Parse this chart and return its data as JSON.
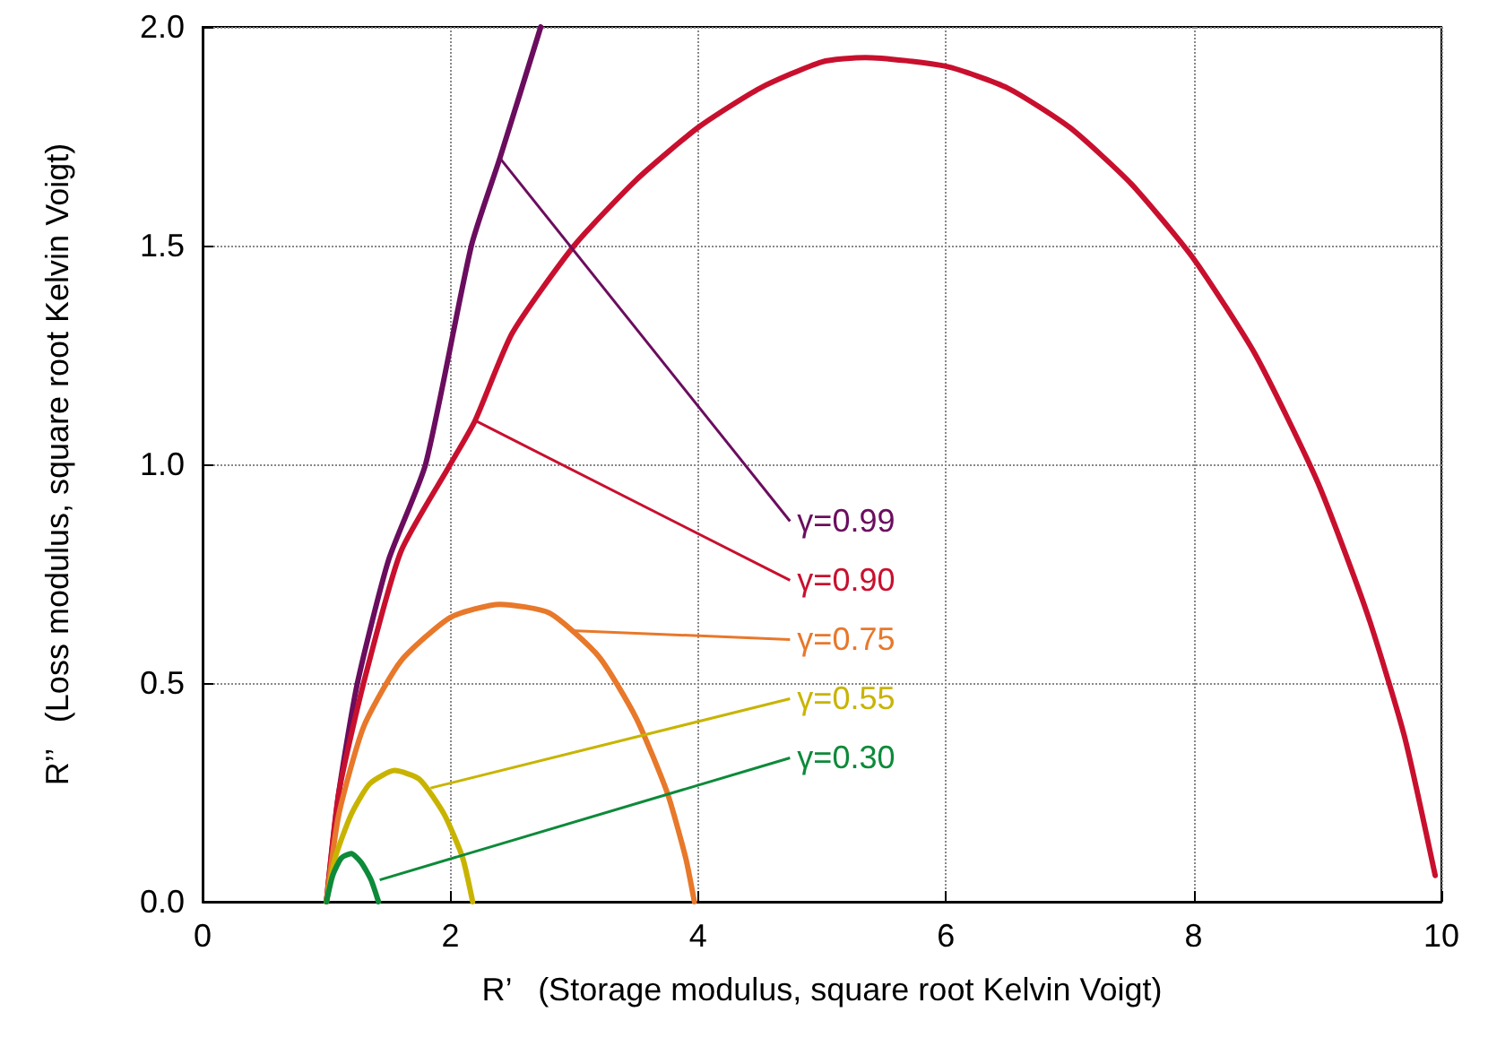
{
  "chart_data": {
    "type": "line",
    "xlabel": "R’   (Storage modulus, square root Kelvin Voigt)",
    "ylabel": "R’’   (Loss modulus, square root Kelvin Voigt)",
    "xlim": [
      0,
      10
    ],
    "xticks": [
      0,
      2,
      4,
      6,
      8,
      10
    ],
    "ylim": [
      0,
      2
    ],
    "yticks": [
      {
        "value": 0,
        "label": "0.0"
      },
      {
        "value": 0.5,
        "label": "0.5"
      },
      {
        "value": 1,
        "label": "1.0"
      },
      {
        "value": 1.5,
        "label": "1.5"
      },
      {
        "value": 2,
        "label": "2.0"
      }
    ],
    "grid": true,
    "marker": "none",
    "line_style": "solid",
    "series": [
      {
        "color": "#6b0d5e",
        "x": [
          1,
          1.1,
          1.25,
          1.5,
          1.8,
          2.17,
          2.4,
          2.73
        ],
        "values": [
          0,
          0.25,
          0.5,
          0.78,
          1.0,
          1.5,
          1.7,
          2.0
        ]
      },
      {
        "color": "#c8102e",
        "x": [
          1,
          1.1,
          1.3,
          1.6,
          2.0,
          2.2,
          2.5,
          3.0,
          3.5,
          4.0,
          4.5,
          5.0,
          5.35,
          6.0,
          6.5,
          7.0,
          7.5,
          8.0,
          8.5,
          9.0,
          9.4,
          9.7,
          9.95
        ],
        "values": [
          0,
          0.25,
          0.5,
          0.8,
          1.0,
          1.1,
          1.3,
          1.5,
          1.65,
          1.77,
          1.86,
          1.92,
          1.93,
          1.91,
          1.86,
          1.77,
          1.64,
          1.47,
          1.25,
          0.96,
          0.66,
          0.38,
          0.06
        ]
      },
      {
        "color": "#e8782a",
        "x": [
          1,
          1.1,
          1.3,
          1.6,
          2.0,
          2.4,
          2.8,
          3.2,
          3.5,
          3.75,
          3.9,
          3.97
        ],
        "values": [
          0,
          0.2,
          0.4,
          0.55,
          0.65,
          0.68,
          0.66,
          0.56,
          0.42,
          0.25,
          0.1,
          0
        ]
      },
      {
        "color": "#c8b400",
        "x": [
          1,
          1.07,
          1.2,
          1.35,
          1.55,
          1.75,
          1.95,
          2.1,
          2.18
        ],
        "values": [
          0,
          0.1,
          0.2,
          0.27,
          0.3,
          0.28,
          0.2,
          0.1,
          0
        ]
      },
      {
        "color": "#0d8a3a",
        "x": [
          1,
          1.05,
          1.12,
          1.2,
          1.28,
          1.36,
          1.42
        ],
        "values": [
          0,
          0.06,
          0.1,
          0.11,
          0.09,
          0.05,
          0
        ]
      }
    ],
    "annotations": [
      {
        "text": "γ=0.99",
        "x": 2.4,
        "y": 1.7
      },
      {
        "text": "γ=0.90",
        "x": 2.2,
        "y": 1.1
      },
      {
        "text": "γ=0.75",
        "x": 2.97,
        "y": 0.62
      },
      {
        "text": "γ=0.55",
        "x": 1.84,
        "y": 0.26
      },
      {
        "text": "γ=0.30",
        "x": 1.43,
        "y": 0.05
      }
    ]
  }
}
